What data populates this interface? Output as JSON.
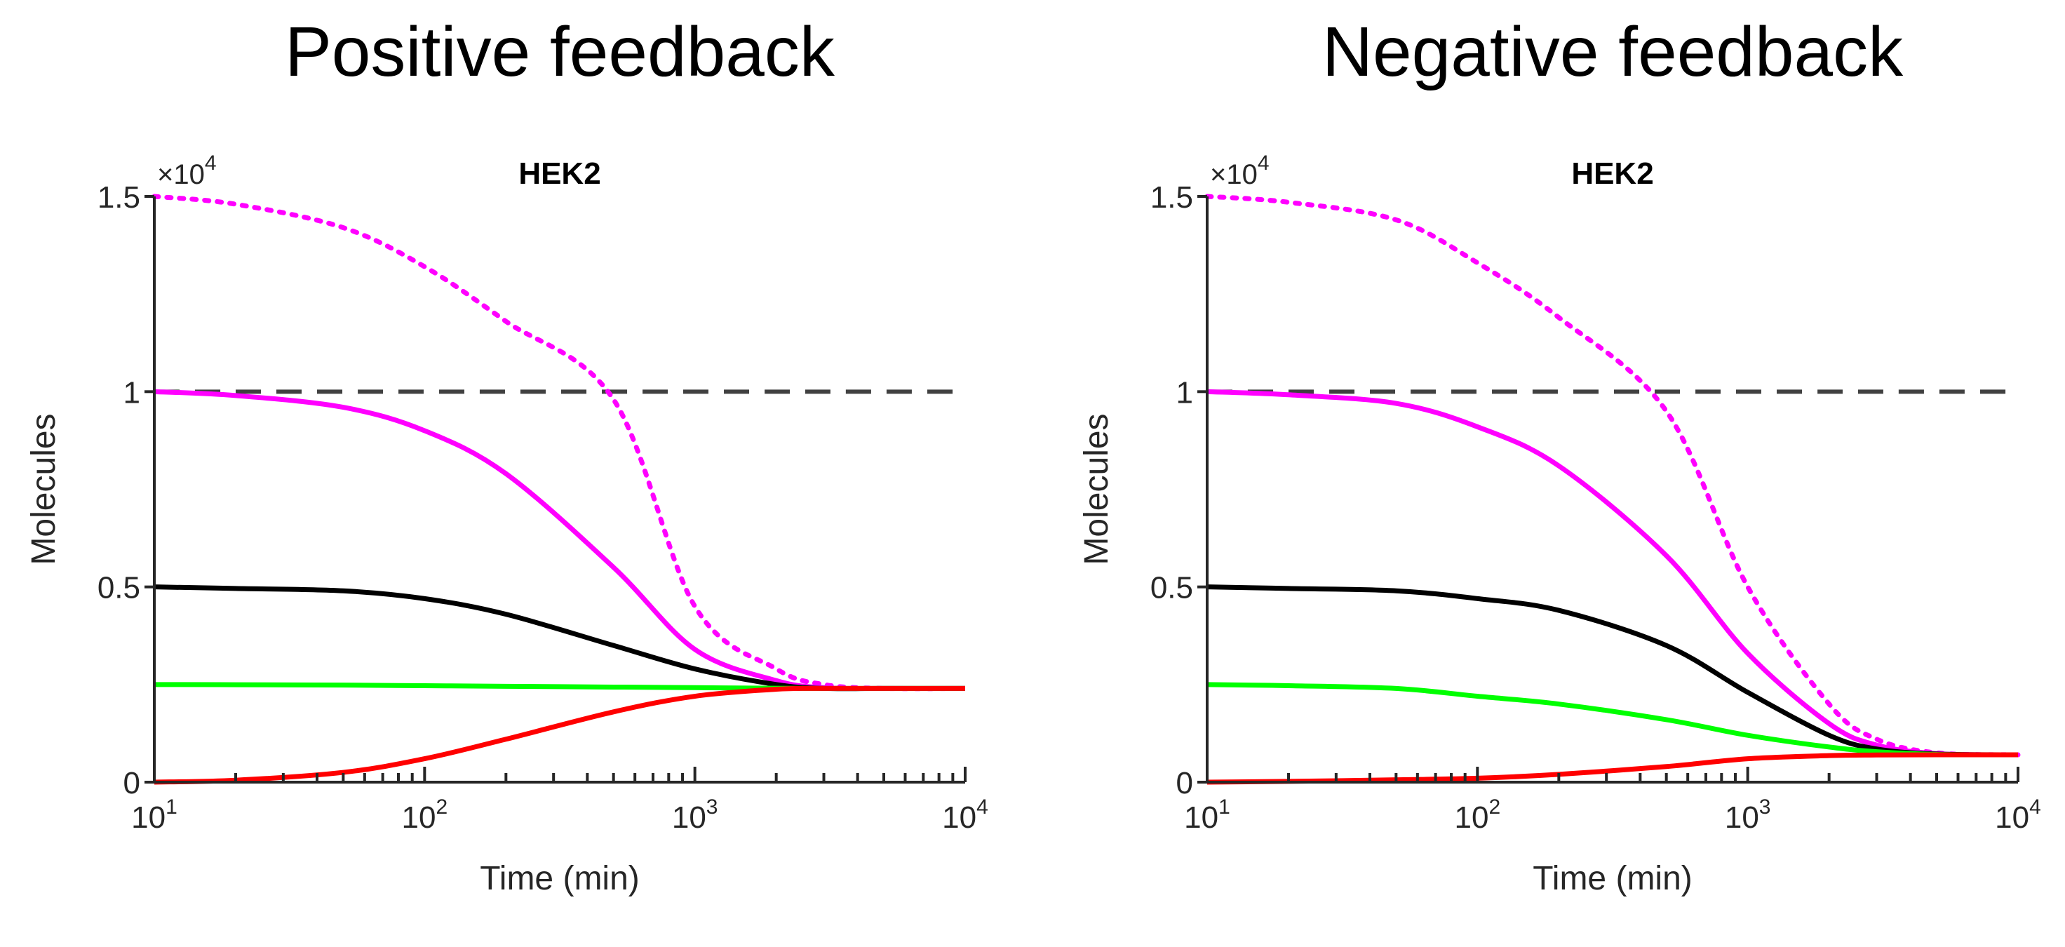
{
  "colors": {
    "magenta": "#ff00ff",
    "black": "#000000",
    "green": "#00ff00",
    "red": "#ff0000",
    "dashed": "#404040",
    "axis": "#262626"
  },
  "chart_data": [
    {
      "type": "line",
      "title": "Positive feedback",
      "subtitle": "HEK2",
      "xlabel": "Time (min)",
      "ylabel": "Molecules",
      "xscale": "log",
      "xlim": [
        10,
        10000
      ],
      "ylim": [
        0,
        15000
      ],
      "y_multiplier": "×10",
      "y_multiplier_exp": "4",
      "xticks": [
        {
          "v": 10,
          "base": "10",
          "exp": "1"
        },
        {
          "v": 100,
          "base": "10",
          "exp": "2"
        },
        {
          "v": 1000,
          "base": "10",
          "exp": "3"
        },
        {
          "v": 10000,
          "base": "10",
          "exp": "4"
        }
      ],
      "yticks": [
        {
          "v": 0,
          "label": "0"
        },
        {
          "v": 5000,
          "label": "0.5"
        },
        {
          "v": 10000,
          "label": "1"
        },
        {
          "v": 15000,
          "label": "1.5"
        }
      ],
      "grid": false,
      "x": [
        10,
        20,
        50,
        100,
        200,
        500,
        1000,
        2000,
        3000,
        5000,
        10000
      ],
      "series": [
        {
          "name": "threshold",
          "color": "dashed",
          "style": "dashed",
          "values": [
            10000,
            10000,
            10000,
            10000,
            10000,
            10000,
            10000,
            10000,
            10000,
            10000,
            10000
          ]
        },
        {
          "name": "magenta-dotted",
          "color": "magenta",
          "style": "dotted",
          "values": [
            15000,
            14800,
            14200,
            13200,
            11800,
            9800,
            4500,
            2900,
            2500,
            2400,
            2400
          ]
        },
        {
          "name": "magenta-solid",
          "color": "magenta",
          "style": "solid",
          "values": [
            10000,
            9900,
            9600,
            9000,
            7900,
            5500,
            3400,
            2600,
            2420,
            2400,
            2400
          ]
        },
        {
          "name": "black",
          "color": "black",
          "style": "solid",
          "values": [
            5000,
            4960,
            4900,
            4700,
            4300,
            3500,
            2900,
            2500,
            2400,
            2400,
            2400
          ]
        },
        {
          "name": "green",
          "color": "green",
          "style": "solid",
          "values": [
            2500,
            2495,
            2485,
            2470,
            2455,
            2435,
            2420,
            2405,
            2400,
            2400,
            2400
          ]
        },
        {
          "name": "red",
          "color": "red",
          "style": "solid",
          "values": [
            0,
            50,
            250,
            600,
            1100,
            1800,
            2200,
            2380,
            2400,
            2400,
            2400
          ]
        }
      ]
    },
    {
      "type": "line",
      "title": "Negative feedback",
      "subtitle": "HEK2",
      "xlabel": "Time (min)",
      "ylabel": "Molecules",
      "xscale": "log",
      "xlim": [
        10,
        10000
      ],
      "ylim": [
        0,
        15000
      ],
      "y_multiplier": "×10",
      "y_multiplier_exp": "4",
      "xticks": [
        {
          "v": 10,
          "base": "10",
          "exp": "1"
        },
        {
          "v": 100,
          "base": "10",
          "exp": "2"
        },
        {
          "v": 1000,
          "base": "10",
          "exp": "3"
        },
        {
          "v": 10000,
          "base": "10",
          "exp": "4"
        }
      ],
      "yticks": [
        {
          "v": 0,
          "label": "0"
        },
        {
          "v": 5000,
          "label": "0.5"
        },
        {
          "v": 10000,
          "label": "1"
        },
        {
          "v": 15000,
          "label": "1.5"
        }
      ],
      "grid": false,
      "x": [
        10,
        20,
        50,
        100,
        200,
        500,
        1000,
        2000,
        3000,
        5000,
        10000
      ],
      "series": [
        {
          "name": "threshold",
          "color": "dashed",
          "style": "dashed",
          "values": [
            10000,
            10000,
            10000,
            10000,
            10000,
            10000,
            10000,
            10000,
            10000,
            10000,
            10000
          ]
        },
        {
          "name": "magenta-dotted",
          "color": "magenta",
          "style": "dotted",
          "values": [
            15000,
            14850,
            14400,
            13300,
            11900,
            9500,
            5000,
            2000,
            1100,
            750,
            700
          ]
        },
        {
          "name": "magenta-solid",
          "color": "magenta",
          "style": "solid",
          "values": [
            10000,
            9920,
            9700,
            9100,
            8100,
            5800,
            3300,
            1500,
            950,
            730,
            700
          ]
        },
        {
          "name": "black",
          "color": "black",
          "style": "solid",
          "values": [
            5000,
            4960,
            4900,
            4700,
            4400,
            3500,
            2300,
            1200,
            850,
            720,
            700
          ]
        },
        {
          "name": "green",
          "color": "green",
          "style": "solid",
          "values": [
            2500,
            2470,
            2400,
            2200,
            2000,
            1600,
            1200,
            900,
            780,
            710,
            700
          ]
        },
        {
          "name": "red",
          "color": "red",
          "style": "solid",
          "values": [
            0,
            20,
            60,
            100,
            200,
            400,
            600,
            680,
            695,
            700,
            700
          ]
        }
      ]
    }
  ]
}
